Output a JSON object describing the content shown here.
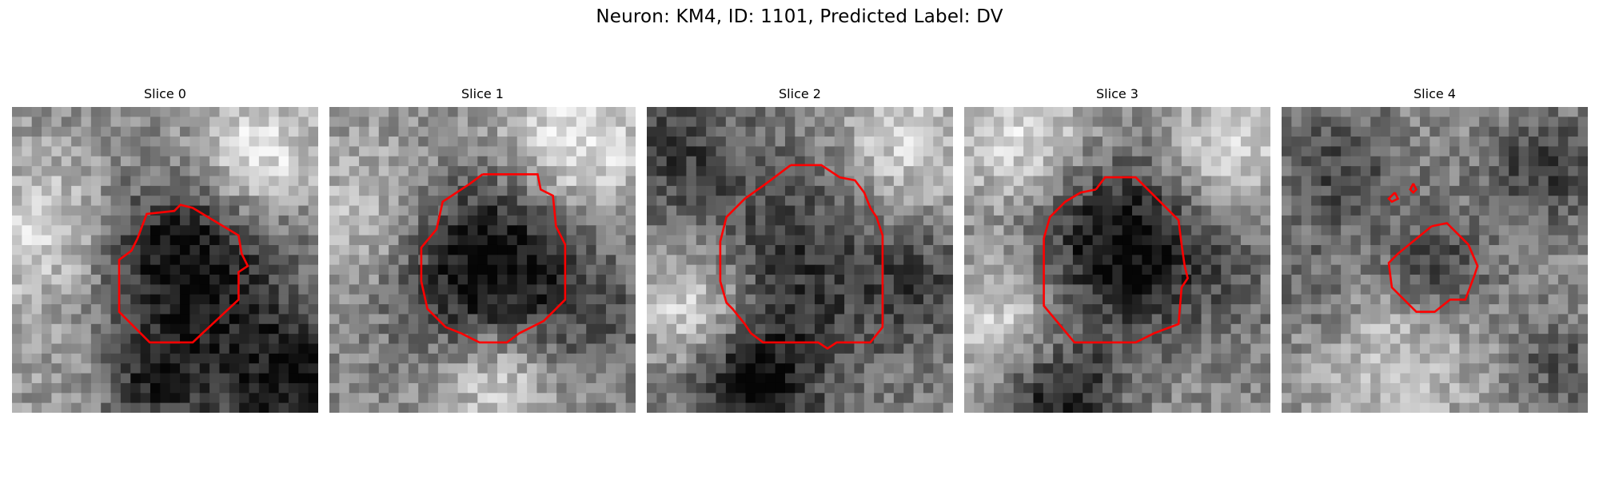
{
  "figure": {
    "suptitle": "Neuron: KM4, ID: 1101, Predicted Label: DV",
    "contour_color": "#ff0000",
    "colormap": "gray"
  },
  "panels": [
    {
      "title": "Slice 0",
      "image": "grayscale-microscopy-slice",
      "overlay": "red-cell-contour"
    },
    {
      "title": "Slice 1",
      "image": "grayscale-microscopy-slice",
      "overlay": "red-cell-contour"
    },
    {
      "title": "Slice 2",
      "image": "grayscale-microscopy-slice",
      "overlay": "red-cell-contour"
    },
    {
      "title": "Slice 3",
      "image": "grayscale-microscopy-slice",
      "overlay": "red-cell-contour"
    },
    {
      "title": "Slice 4",
      "image": "grayscale-microscopy-slice",
      "overlay": "red-cell-contour"
    }
  ]
}
